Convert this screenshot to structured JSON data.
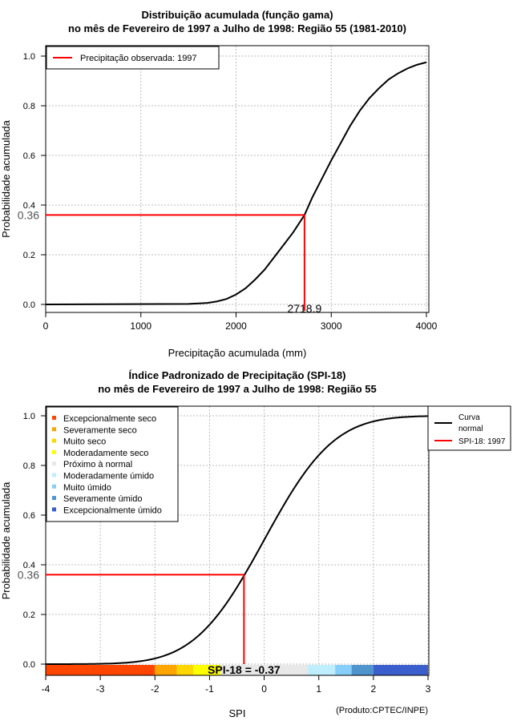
{
  "chart_data": [
    {
      "type": "line",
      "title": "Distribuição acumulada (função gama)",
      "subtitle": "no mês de Fevereiro de 1997 a Julho de 1998: Região 55 (1981-2010)",
      "xlabel": "Precipitação acumulada (mm)",
      "ylabel": "Probabilidade acumulada",
      "xlim": [
        0,
        4000
      ],
      "ylim": [
        0,
        1
      ],
      "xticks": [
        "0",
        "1000",
        "2000",
        "3000",
        "4000"
      ],
      "yticks": [
        "0.0",
        "0.2",
        "0.4",
        "0.6",
        "0.8",
        "1.0"
      ],
      "grid": true,
      "curve": {
        "x": [
          0,
          1500,
          1700,
          1800,
          1900,
          2000,
          2100,
          2200,
          2300,
          2400,
          2500,
          2600,
          2718.9,
          2800,
          2900,
          3000,
          3100,
          3200,
          3300,
          3400,
          3500,
          3600,
          3700,
          3800,
          3900,
          4000
        ],
        "y": [
          0,
          0.002,
          0.006,
          0.012,
          0.022,
          0.04,
          0.065,
          0.1,
          0.14,
          0.19,
          0.24,
          0.29,
          0.36,
          0.43,
          0.505,
          0.58,
          0.65,
          0.72,
          0.78,
          0.83,
          0.87,
          0.905,
          0.93,
          0.95,
          0.965,
          0.975
        ]
      },
      "observed": {
        "x": 2718.9,
        "y": 0.36,
        "x_label": "2718.9",
        "y_label": "0.36"
      },
      "legend": {
        "placement": "top-left",
        "entries": [
          "Precipitação observada: 1997"
        ]
      }
    },
    {
      "type": "line",
      "title": "Índice Padronizado de Precipitação (SPI-18)",
      "subtitle": "no mês de Fevereiro de 1997 a Julho de 1998: Região 55",
      "xlabel": "SPI",
      "ylabel": "Probabilidade acumulada",
      "xlim": [
        -4,
        3
      ],
      "ylim": [
        0,
        1
      ],
      "xticks": [
        "-4",
        "-3",
        "-2",
        "-1",
        "0",
        "1",
        "2",
        "3"
      ],
      "yticks": [
        "0.0",
        "0.2",
        "0.4",
        "0.6",
        "0.8",
        "1.0"
      ],
      "grid": true,
      "observed": {
        "x": -0.37,
        "y": 0.36,
        "y_label": "0.36",
        "annotation": "SPI-18 = -0.37"
      },
      "categories": [
        {
          "name": "Excepcionalmente seco",
          "from": -4,
          "to": -2,
          "color": "#ff4500"
        },
        {
          "name": "Severamente seco",
          "from": -2,
          "to": -1.6,
          "color": "#ffa500"
        },
        {
          "name": "Muito seco",
          "from": -1.6,
          "to": -1.3,
          "color": "#ffd700"
        },
        {
          "name": "Moderadamente seco",
          "from": -1.3,
          "to": -0.8,
          "color": "#ffff00"
        },
        {
          "name": "Próximo à normal",
          "from": -0.8,
          "to": 0.8,
          "color": "#e8e8e8"
        },
        {
          "name": "Moderadamente úmido",
          "from": 0.8,
          "to": 1.3,
          "color": "#bfefff"
        },
        {
          "name": "Muito úmido",
          "from": 1.3,
          "to": 1.6,
          "color": "#87cefa"
        },
        {
          "name": "Severamente úmido",
          "from": 1.6,
          "to": 2,
          "color": "#4f94cd"
        },
        {
          "name": "Excepcionalmente úmido",
          "from": 2,
          "to": 3,
          "color": "#3a5fcd"
        }
      ],
      "legend": {
        "placement": "top-right",
        "entries": [
          "Curva normal",
          "SPI-18: 1997"
        ]
      },
      "footer": "(Produto:CPTEC/INPE)"
    }
  ]
}
